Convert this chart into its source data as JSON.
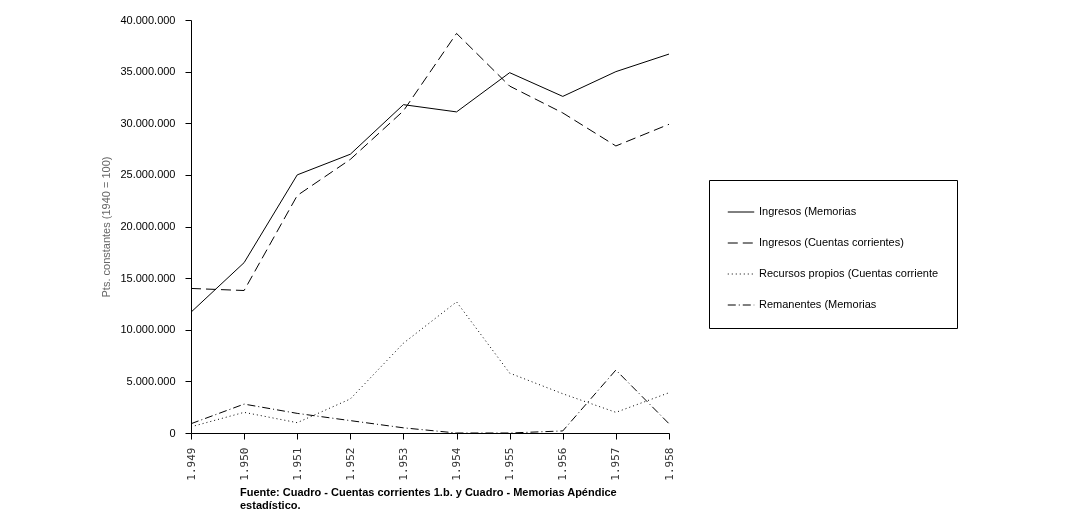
{
  "chart_data": {
    "type": "line",
    "ylabel": "Pts. constantes (1940 = 100)",
    "categories": [
      "1.949",
      "1.950",
      "1.951",
      "1.952",
      "1.953",
      "1.954",
      "1.955",
      "1.956",
      "1.957",
      "1.958"
    ],
    "series": [
      {
        "name": "Ingresos (Memorias",
        "color": "#000000",
        "line_style": "solid",
        "values": [
          11700000,
          16500000,
          25000000,
          27000000,
          31800000,
          31100000,
          34900000,
          32600000,
          35000000,
          36700000
        ]
      },
      {
        "name": "Ingresos (Cuentas corrientes)",
        "color": "#000000",
        "line_style": "dashed",
        "values": [
          14000000,
          13800000,
          23000000,
          26500000,
          31200000,
          38700000,
          33600000,
          31000000,
          27800000,
          29900000
        ]
      },
      {
        "name": "Recursos propios (Cuentas corriente",
        "color": "#000000",
        "line_style": "dotted",
        "values": [
          600000,
          2000000,
          1000000,
          3300000,
          8700000,
          12700000,
          5800000,
          3800000,
          2000000,
          3900000
        ]
      },
      {
        "name": "Remanentes (Memorias",
        "color": "#000000",
        "line_style": "dashdot",
        "values": [
          900000,
          2800000,
          1900000,
          1200000,
          500000,
          0,
          0,
          200000,
          6100000,
          900000
        ]
      }
    ],
    "ylim": [
      0,
      40000000
    ],
    "yticks": [
      {
        "value": 0,
        "label": "0"
      },
      {
        "value": 5000000,
        "label": "5.000.000"
      },
      {
        "value": 10000000,
        "label": "10.000.000"
      },
      {
        "value": 15000000,
        "label": "15.000.000"
      },
      {
        "value": 20000000,
        "label": "20.000.000"
      },
      {
        "value": 25000000,
        "label": "25.000.000"
      },
      {
        "value": 30000000,
        "label": "30.000.000"
      },
      {
        "value": 35000000,
        "label": "35.000.000"
      },
      {
        "value": 40000000,
        "label": "40.000.000"
      }
    ],
    "grid": false,
    "legend": "right",
    "marker": "none",
    "annotations": [
      "Fuente: Cuadro - Cuentas corrientes 1.b. y Cuadro - Memorias Apéndice estadístico."
    ]
  }
}
